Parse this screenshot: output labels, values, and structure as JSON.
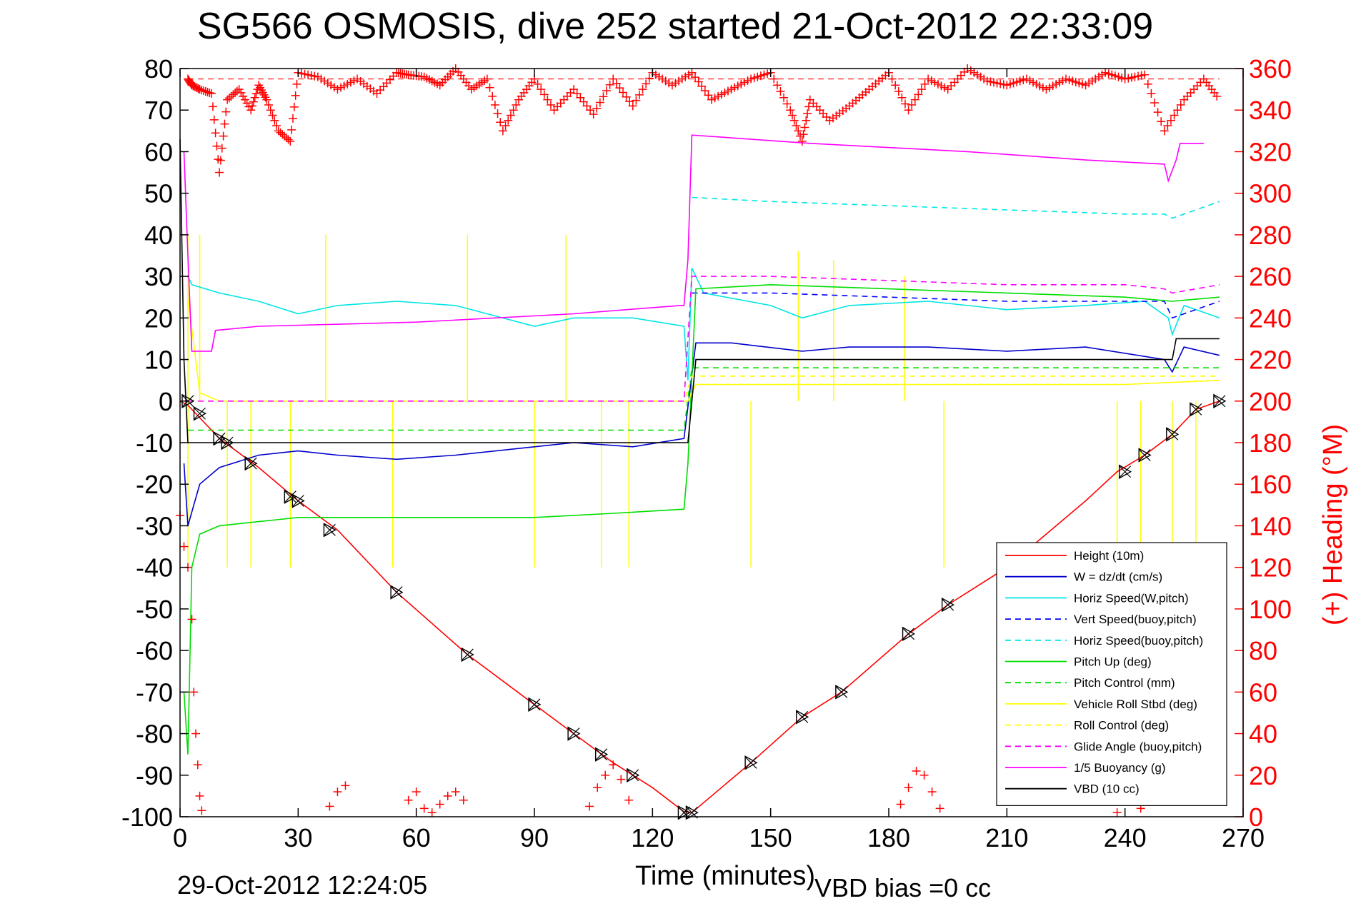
{
  "chart_data": {
    "type": "line",
    "title": "SG566 OSMOSIS, dive 252 started 21-Oct-2012 22:33:09",
    "xlabel": "Time (minutes)",
    "ylabel_right": "(+) Heading (°M)",
    "xlim": [
      0,
      270
    ],
    "ylim": [
      -100,
      80
    ],
    "ylim_right": [
      0,
      360
    ],
    "xticks": [
      "0",
      "30",
      "60",
      "90",
      "120",
      "150",
      "180",
      "210",
      "240",
      "270"
    ],
    "yticks": [
      "80",
      "70",
      "60",
      "50",
      "40",
      "30",
      "20",
      "10",
      "0",
      "-10",
      "-20",
      "-30",
      "-40",
      "-50",
      "-60",
      "-70",
      "-80",
      "-90",
      "-100"
    ],
    "yticks_right": [
      "360",
      "340",
      "320",
      "300",
      "280",
      "260",
      "240",
      "220",
      "200",
      "180",
      "160",
      "140",
      "120",
      "100",
      "80",
      "60",
      "40",
      "20",
      "0"
    ],
    "grid": false,
    "legend_position": "bottom-right",
    "footer_left": "29-Oct-2012 12:24:05",
    "footer_right": "VBD bias =0 cc",
    "series": [
      {
        "name": "Height (10m)",
        "color": "#ff0000",
        "style": "solid",
        "x": [
          0,
          2,
          10,
          20,
          30,
          40,
          55,
          73,
          90,
          100,
          110,
          120,
          128,
          130,
          145,
          158,
          168,
          185,
          195,
          210,
          230,
          238,
          245,
          252,
          258,
          264
        ],
        "y": [
          0,
          -1,
          -9,
          -16,
          -24,
          -31,
          -46,
          -61,
          -73,
          -80,
          -87,
          -93,
          -98.8,
          -99,
          -87,
          -76,
          -70,
          -56,
          -49,
          -40,
          -24,
          -17,
          -13,
          -8,
          -2,
          0
        ]
      },
      {
        "name": "W = dz/dt (cm/s)",
        "color": "#0000cc",
        "style": "solid",
        "x": [
          1,
          2,
          5,
          10,
          20,
          30,
          40,
          55,
          70,
          90,
          100,
          115,
          128,
          131,
          140,
          158,
          170,
          190,
          210,
          230,
          250,
          252,
          255,
          264
        ],
        "y": [
          -15,
          -30,
          -20,
          -16,
          -13,
          -12,
          -13,
          -14,
          -13,
          -11,
          -10,
          -11,
          -9,
          14,
          14,
          12,
          13,
          13,
          12,
          13,
          10,
          7,
          13,
          11
        ]
      },
      {
        "name": "Horiz Speed(W,pitch)",
        "color": "#00e5e5",
        "style": "solid",
        "x": [
          2,
          3,
          10,
          20,
          30,
          40,
          55,
          70,
          90,
          100,
          115,
          128,
          129,
          130,
          133,
          150,
          158,
          170,
          190,
          210,
          230,
          245,
          251,
          252,
          255,
          264
        ],
        "y": [
          30,
          28,
          26,
          24,
          21,
          23,
          24,
          23,
          18,
          20,
          20,
          18,
          5,
          32,
          26,
          23,
          20,
          23,
          24,
          22,
          23,
          24,
          20,
          16,
          23,
          20
        ]
      },
      {
        "name": "Vert Speed(buoy,pitch)",
        "color": "#0000ff",
        "style": "dashed",
        "x": [
          130,
          150,
          180,
          210,
          240,
          250,
          252,
          264
        ],
        "y": [
          26,
          26,
          25,
          24,
          24,
          24,
          20,
          24
        ]
      },
      {
        "name": "Horiz Speed(buoy,pitch)",
        "color": "#00e5e5",
        "style": "dashed",
        "x": [
          130,
          150,
          180,
          210,
          240,
          250,
          252,
          264
        ],
        "y": [
          49,
          48,
          47,
          46,
          45,
          45,
          44,
          48
        ]
      },
      {
        "name": "Pitch Up (deg)",
        "color": "#00dd00",
        "style": "solid",
        "x": [
          1,
          2,
          3,
          5,
          10,
          20,
          30,
          50,
          70,
          90,
          110,
          128,
          129,
          131,
          150,
          180,
          210,
          240,
          252,
          264
        ],
        "y": [
          -70,
          -85,
          -40,
          -32,
          -30,
          -29,
          -28,
          -28,
          -28,
          -28,
          -27,
          -26,
          -15,
          27,
          28,
          27,
          26,
          25,
          24,
          25
        ]
      },
      {
        "name": "Pitch Control (mm)",
        "color": "#00dd00",
        "style": "dashed",
        "x": [
          2,
          128,
          130,
          264
        ],
        "y": [
          -7,
          -7,
          8,
          8
        ]
      },
      {
        "name": "Vehicle Roll Stbd (deg)",
        "color": "#ffff00",
        "style": "solid",
        "x": [
          2,
          5,
          10,
          60,
          120,
          129,
          131,
          160,
          200,
          240,
          264
        ],
        "y": [
          25,
          2,
          0,
          0,
          0,
          0,
          4,
          4,
          4,
          4,
          5
        ]
      },
      {
        "name": "Roll Control (deg)",
        "color": "#ffff00",
        "style": "dashed",
        "x": [
          2,
          128,
          130,
          264
        ],
        "y": [
          0,
          0,
          6,
          6
        ]
      },
      {
        "name": "Glide Angle (buoy,pitch)",
        "color": "#ff00ff",
        "style": "dashed",
        "x": [
          2,
          128,
          130,
          150,
          180,
          210,
          240,
          250,
          252,
          264
        ],
        "y": [
          0,
          0,
          30,
          30,
          29,
          28,
          28,
          27,
          26,
          28
        ]
      },
      {
        "name": "1/5 Buoyancy (g)",
        "color": "#ff00ff",
        "style": "solid",
        "x": [
          1,
          2,
          3,
          8,
          9,
          20,
          60,
          100,
          127,
          128,
          129,
          130,
          160,
          200,
          230,
          250,
          251,
          253,
          254,
          260
        ],
        "y": [
          60,
          35,
          12,
          12,
          17,
          18,
          19,
          21,
          23,
          23,
          34,
          64,
          62,
          60,
          58,
          57,
          53,
          58,
          62,
          62
        ]
      },
      {
        "name": "VBD (10 cc)",
        "color": "#000000",
        "style": "solid",
        "x": [
          0,
          1,
          2,
          3,
          128,
          129,
          131,
          150,
          252,
          253,
          264
        ],
        "y": [
          63,
          10,
          -10,
          -10,
          -10,
          -10,
          10,
          10,
          10,
          15,
          15
        ]
      }
    ],
    "heading_series": {
      "name": "Heading",
      "color": "#ff0000",
      "marker": "+",
      "axis": "right",
      "x": [
        2,
        3,
        5,
        8,
        10,
        12,
        15,
        18,
        20,
        22,
        25,
        28,
        30,
        35,
        40,
        45,
        50,
        55,
        58,
        62,
        66,
        70,
        74,
        78,
        82,
        86,
        90,
        95,
        100,
        105,
        110,
        115,
        120,
        125,
        130,
        135,
        140,
        145,
        150,
        155,
        158,
        160,
        165,
        170,
        175,
        180,
        185,
        190,
        195,
        200,
        205,
        210,
        215,
        220,
        225,
        230,
        235,
        240,
        245,
        250,
        255,
        260,
        264
      ],
      "y": [
        355,
        352,
        350,
        348,
        310,
        345,
        350,
        340,
        352,
        345,
        330,
        325,
        358,
        356,
        350,
        355,
        348,
        358,
        357,
        356,
        352,
        360,
        350,
        355,
        330,
        345,
        355,
        340,
        350,
        338,
        355,
        342,
        358,
        352,
        358,
        345,
        350,
        355,
        358,
        340,
        325,
        345,
        335,
        342,
        350,
        358,
        340,
        355,
        350,
        360,
        354,
        352,
        355,
        350,
        355,
        352,
        358,
        355,
        357,
        330,
        345,
        355,
        345
      ]
    },
    "heading_low_clusters": [
      {
        "x": [
          0,
          1,
          2,
          3,
          3.5,
          4,
          4.5,
          5,
          5.5
        ],
        "y": [
          145,
          130,
          120,
          95,
          60,
          40,
          25,
          10,
          3
        ]
      },
      {
        "x": [
          38,
          40,
          42
        ],
        "y": [
          5,
          12,
          15
        ]
      },
      {
        "x": [
          58,
          60,
          62,
          64,
          66,
          68,
          70,
          72
        ],
        "y": [
          8,
          12,
          4,
          2,
          6,
          10,
          12,
          8
        ]
      },
      {
        "x": [
          104,
          106,
          108,
          110,
          112,
          114
        ],
        "y": [
          5,
          14,
          20,
          25,
          18,
          8
        ]
      },
      {
        "x": [
          183,
          185,
          187,
          189,
          191,
          193
        ],
        "y": [
          6,
          14,
          22,
          20,
          12,
          4
        ]
      },
      {
        "x": [
          238,
          240,
          242,
          244
        ],
        "y": [
          2,
          8,
          10,
          4
        ]
      }
    ],
    "height_markers": {
      "x": [
        2,
        5,
        10,
        12,
        18,
        28,
        30,
        38,
        55,
        73,
        90,
        100,
        107,
        115,
        128,
        130,
        145,
        158,
        168,
        185,
        195,
        240,
        245,
        252,
        258,
        264
      ],
      "y": [
        0,
        -3,
        -9,
        -10,
        -15,
        -23,
        -24,
        -31,
        -46,
        -61,
        -73,
        -80,
        -85,
        -90,
        -99,
        -99,
        -87,
        -76,
        -70,
        -56,
        -49,
        -17,
        -13,
        -8,
        -2,
        0
      ]
    },
    "roll_spikes": [
      {
        "x": 2,
        "low": -40,
        "high": 40
      },
      {
        "x": 5,
        "low": 0,
        "high": 40
      },
      {
        "x": 12,
        "low": -40,
        "high": 0
      },
      {
        "x": 18,
        "low": -40,
        "high": 0
      },
      {
        "x": 28,
        "low": -40,
        "high": 0
      },
      {
        "x": 37,
        "low": 0,
        "high": 40
      },
      {
        "x": 54,
        "low": -40,
        "high": 0
      },
      {
        "x": 73,
        "low": 0,
        "high": 40
      },
      {
        "x": 90,
        "low": -40,
        "high": 0
      },
      {
        "x": 98,
        "low": 0,
        "high": 40
      },
      {
        "x": 107,
        "low": -40,
        "high": 0
      },
      {
        "x": 114,
        "low": -40,
        "high": 0
      },
      {
        "x": 145,
        "low": -40,
        "high": 0
      },
      {
        "x": 157,
        "low": 0,
        "high": 36
      },
      {
        "x": 166,
        "low": 0,
        "high": 34
      },
      {
        "x": 184,
        "low": 0,
        "high": 30
      },
      {
        "x": 194,
        "low": -40,
        "high": 0
      },
      {
        "x": 238,
        "low": -40,
        "high": 0
      },
      {
        "x": 244,
        "low": -40,
        "high": 0
      },
      {
        "x": 252,
        "low": -40,
        "high": 0
      },
      {
        "x": 258,
        "low": -40,
        "high": 0
      }
    ]
  }
}
